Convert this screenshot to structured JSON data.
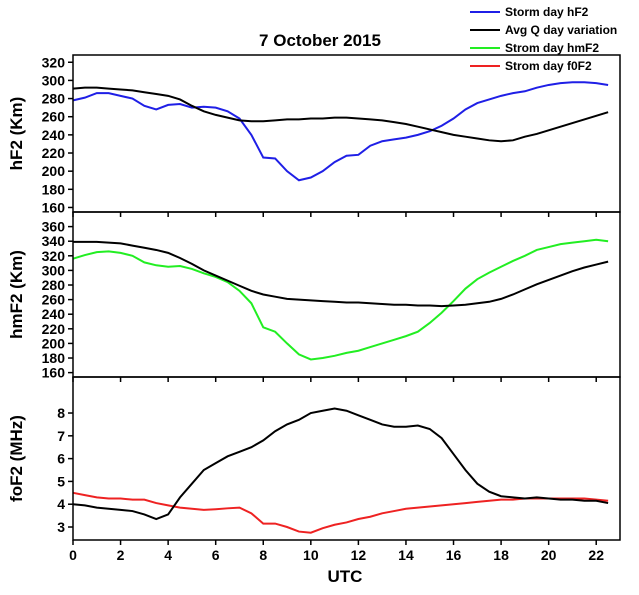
{
  "chart_data": [
    {
      "type": "line",
      "title": "7 October 2015",
      "y_label": "hF2 (Km)",
      "x": [
        0,
        0.5,
        1,
        1.5,
        2,
        2.5,
        3,
        3.5,
        4,
        4.5,
        5,
        5.5,
        6,
        6.5,
        7,
        7.5,
        8,
        8.5,
        9,
        9.5,
        10,
        10.5,
        11,
        11.5,
        12,
        12.5,
        13,
        13.5,
        14,
        14.5,
        15,
        15.5,
        16,
        16.5,
        17,
        17.5,
        18,
        18.5,
        19,
        19.5,
        20,
        20.5,
        21,
        21.5,
        22,
        22.5
      ],
      "xlim": [
        0,
        23
      ],
      "ylim": [
        155,
        328
      ],
      "yticks": [
        160,
        180,
        200,
        220,
        240,
        260,
        280,
        300,
        320
      ],
      "series": [
        {
          "name": "Storm day hF2",
          "color": "#1f1fe6",
          "values": [
            278,
            281,
            286,
            286,
            283,
            280,
            272,
            268,
            273,
            274,
            270,
            271,
            270,
            266,
            258,
            240,
            215,
            214,
            200,
            190,
            193,
            200,
            210,
            217,
            218,
            228,
            233,
            235,
            237,
            240,
            244,
            250,
            258,
            268,
            275,
            279,
            283,
            286,
            288,
            292,
            295,
            297,
            298,
            298,
            297,
            295
          ]
        },
        {
          "name": "Avg Q day variation",
          "color": "#000000",
          "values": [
            291,
            292,
            292,
            291,
            290,
            289,
            287,
            285,
            283,
            279,
            272,
            266,
            262,
            259,
            256,
            255,
            255,
            256,
            257,
            257,
            258,
            258,
            259,
            259,
            258,
            257,
            256,
            254,
            252,
            249,
            246,
            243,
            240,
            238,
            236,
            234,
            233,
            234,
            238,
            241,
            245,
            249,
            253,
            257,
            261,
            265
          ]
        }
      ]
    },
    {
      "type": "line",
      "y_label": "hmF2 (Km)",
      "x": [
        0,
        0.5,
        1,
        1.5,
        2,
        2.5,
        3,
        3.5,
        4,
        4.5,
        5,
        5.5,
        6,
        6.5,
        7,
        7.5,
        8,
        8.5,
        9,
        9.5,
        10,
        10.5,
        11,
        11.5,
        12,
        12.5,
        13,
        13.5,
        14,
        14.5,
        15,
        15.5,
        16,
        16.5,
        17,
        17.5,
        18,
        18.5,
        19,
        19.5,
        20,
        20.5,
        21,
        21.5,
        22,
        22.5
      ],
      "xlim": [
        0,
        23
      ],
      "ylim": [
        154,
        380
      ],
      "yticks": [
        160,
        180,
        200,
        220,
        240,
        260,
        280,
        300,
        320,
        340,
        360
      ],
      "series": [
        {
          "name": "Strom day hmF2",
          "color": "#22ee22",
          "values": [
            316,
            321,
            325,
            326,
            324,
            320,
            311,
            307,
            305,
            306,
            302,
            296,
            291,
            284,
            272,
            255,
            222,
            216,
            200,
            185,
            178,
            180,
            183,
            187,
            190,
            195,
            200,
            205,
            210,
            216,
            228,
            242,
            258,
            275,
            288,
            297,
            305,
            313,
            320,
            328,
            332,
            336,
            338,
            340,
            342,
            340
          ]
        },
        {
          "color": "#000000",
          "values": [
            339,
            339,
            339,
            338,
            337,
            334,
            331,
            328,
            324,
            317,
            309,
            300,
            293,
            286,
            279,
            272,
            267,
            264,
            261,
            260,
            259,
            258,
            257,
            256,
            256,
            255,
            254,
            253,
            253,
            252,
            252,
            251,
            252,
            253,
            255,
            257,
            261,
            267,
            274,
            281,
            287,
            293,
            299,
            304,
            308,
            312
          ]
        }
      ]
    },
    {
      "type": "line",
      "y_label": "foF2 (MHz)",
      "x_label": "UTC",
      "x": [
        0,
        0.5,
        1,
        1.5,
        2,
        2.5,
        3,
        3.5,
        4,
        4.5,
        5,
        5.5,
        6,
        6.5,
        7,
        7.5,
        8,
        8.5,
        9,
        9.5,
        10,
        10.5,
        11,
        11.5,
        12,
        12.5,
        13,
        13.5,
        14,
        14.5,
        15,
        15.5,
        16,
        16.5,
        17,
        17.5,
        18,
        18.5,
        19,
        19.5,
        20,
        20.5,
        21,
        21.5,
        22,
        22.5
      ],
      "xlim": [
        0,
        23
      ],
      "xticks": [
        0,
        2,
        4,
        6,
        8,
        10,
        12,
        14,
        16,
        18,
        20,
        22
      ],
      "ylim": [
        2.43,
        9.58
      ],
      "yticks": [
        3,
        4,
        5,
        6,
        7,
        8
      ],
      "series": [
        {
          "name": "Strom day f0F2",
          "color": "#ee2222",
          "values": [
            4.5,
            4.4,
            4.3,
            4.25,
            4.25,
            4.2,
            4.2,
            4.05,
            3.95,
            3.85,
            3.8,
            3.75,
            3.78,
            3.82,
            3.85,
            3.6,
            3.15,
            3.15,
            3.0,
            2.8,
            2.75,
            2.95,
            3.1,
            3.2,
            3.35,
            3.45,
            3.6,
            3.7,
            3.8,
            3.85,
            3.9,
            3.95,
            4.0,
            4.05,
            4.1,
            4.15,
            4.2,
            4.2,
            4.25,
            4.25,
            4.25,
            4.25,
            4.25,
            4.25,
            4.2,
            4.15
          ]
        },
        {
          "color": "#000000",
          "values": [
            4.0,
            3.95,
            3.85,
            3.8,
            3.75,
            3.7,
            3.55,
            3.35,
            3.55,
            4.3,
            4.9,
            5.5,
            5.8,
            6.1,
            6.3,
            6.5,
            6.8,
            7.2,
            7.5,
            7.7,
            8.0,
            8.1,
            8.2,
            8.1,
            7.9,
            7.7,
            7.5,
            7.4,
            7.4,
            7.45,
            7.3,
            6.9,
            6.2,
            5.5,
            4.9,
            4.55,
            4.35,
            4.3,
            4.25,
            4.3,
            4.25,
            4.2,
            4.2,
            4.15,
            4.15,
            4.05
          ]
        }
      ]
    }
  ]
}
